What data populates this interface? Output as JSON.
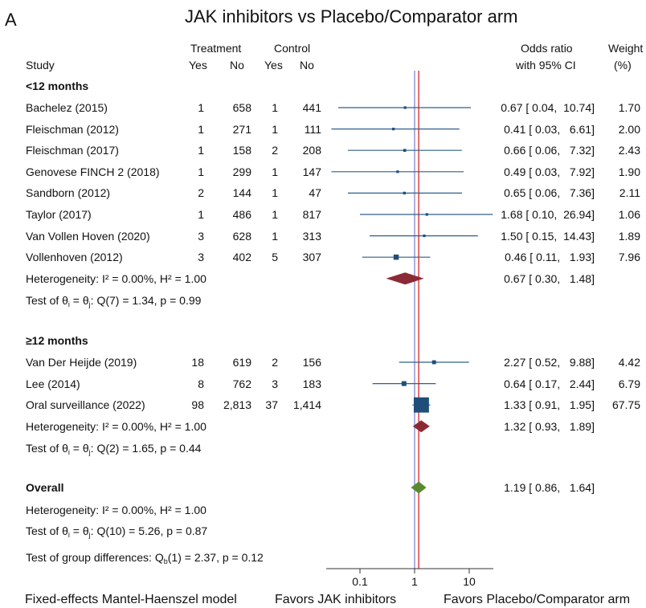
{
  "chart_data": {
    "type": "forest",
    "panel_label": "A",
    "title": "JAK inhibitors vs Placebo/Comparator arm",
    "header": {
      "study": "Study",
      "treatment": "Treatment",
      "control": "Control",
      "yes": "Yes",
      "no": "No",
      "or_line1": "Odds ratio",
      "or_line2": "with 95% CI",
      "weight_line1": "Weight",
      "weight_line2": "(%)"
    },
    "x_axis": {
      "scale": "log",
      "ticks": [
        0.1,
        1,
        10
      ],
      "tick_labels": [
        "0.1",
        "1",
        "10"
      ],
      "reference": 1
    },
    "overall_line": 1.19,
    "groups": [
      {
        "label": "<12 months",
        "studies": [
          {
            "name": "Bachelez (2015)",
            "t_yes": "1",
            "t_no": "658",
            "c_yes": "1",
            "c_no": "441",
            "or": 0.67,
            "lo": 0.04,
            "hi": 10.74,
            "ci_text": "0.67 [ 0.04,  10.74]",
            "weight": "1.70"
          },
          {
            "name": "Fleischman (2012)",
            "t_yes": "1",
            "t_no": "271",
            "c_yes": "1",
            "c_no": "111",
            "or": 0.41,
            "lo": 0.03,
            "hi": 6.61,
            "ci_text": "0.41 [ 0.03,   6.61]",
            "weight": "2.00"
          },
          {
            "name": "Fleischman (2017)",
            "t_yes": "1",
            "t_no": "158",
            "c_yes": "2",
            "c_no": "208",
            "or": 0.66,
            "lo": 0.06,
            "hi": 7.32,
            "ci_text": "0.66 [ 0.06,   7.32]",
            "weight": "2.43"
          },
          {
            "name": "Genovese FINCH 2 (2018)",
            "t_yes": "1",
            "t_no": "299",
            "c_yes": "1",
            "c_no": "147",
            "or": 0.49,
            "lo": 0.03,
            "hi": 7.92,
            "ci_text": "0.49 [ 0.03,   7.92]",
            "weight": "1.90"
          },
          {
            "name": "Sandborn (2012)",
            "t_yes": "2",
            "t_no": "144",
            "c_yes": "1",
            "c_no": "47",
            "or": 0.65,
            "lo": 0.06,
            "hi": 7.36,
            "ci_text": "0.65 [ 0.06,   7.36]",
            "weight": "2.11"
          },
          {
            "name": "Taylor (2017)",
            "t_yes": "1",
            "t_no": "486",
            "c_yes": "1",
            "c_no": "817",
            "or": 1.68,
            "lo": 0.1,
            "hi": 26.94,
            "ci_text": "1.68 [ 0.10,  26.94]",
            "weight": "1.06"
          },
          {
            "name": "Van Vollen Hoven (2020)",
            "t_yes": "3",
            "t_no": "628",
            "c_yes": "1",
            "c_no": "313",
            "or": 1.5,
            "lo": 0.15,
            "hi": 14.43,
            "ci_text": "1.50 [ 0.15,  14.43]",
            "weight": "1.89"
          },
          {
            "name": "Vollenhoven (2012)",
            "t_yes": "3",
            "t_no": "402",
            "c_yes": "5",
            "c_no": "307",
            "or": 0.46,
            "lo": 0.11,
            "hi": 1.93,
            "ci_text": "0.46 [ 0.11,   1.93]",
            "weight": "7.96"
          }
        ],
        "heterogeneity": "Heterogeneity: I² = 0.00%, H² = 1.00",
        "test_theta": {
          "prefix": "Test of θ",
          "i": "i",
          "eq": " = θ",
          "j": "j",
          "suffix": ": Q(7) = 1.34, p = 0.99"
        },
        "pooled": {
          "or": 0.67,
          "lo": 0.3,
          "hi": 1.48,
          "ci_text": "0.67 [ 0.30,   1.48]",
          "color": "#8b2a35"
        }
      },
      {
        "label": "≥12 months",
        "studies": [
          {
            "name": "Van Der Heijde (2019)",
            "t_yes": "18",
            "t_no": "619",
            "c_yes": "2",
            "c_no": "156",
            "or": 2.27,
            "lo": 0.52,
            "hi": 9.88,
            "ci_text": "2.27 [ 0.52,   9.88]",
            "weight": "4.42"
          },
          {
            "name": "Lee (2014)",
            "t_yes": "8",
            "t_no": "762",
            "c_yes": "3",
            "c_no": "183",
            "or": 0.64,
            "lo": 0.17,
            "hi": 2.44,
            "ci_text": "0.64 [ 0.17,   2.44]",
            "weight": "6.79"
          },
          {
            "name": "Oral surveillance (2022)",
            "t_yes": "98",
            "t_no": "2,813",
            "c_yes": "37",
            "c_no": "1,414",
            "or": 1.33,
            "lo": 0.91,
            "hi": 1.95,
            "ci_text": "1.33 [ 0.91,   1.95]",
            "weight": "67.75"
          }
        ],
        "heterogeneity": "Heterogeneity: I² = 0.00%, H² = 1.00",
        "test_theta": {
          "prefix": "Test of θ",
          "i": "i",
          "eq": " = θ",
          "j": "j",
          "suffix": ": Q(2) = 1.65, p = 0.44"
        },
        "pooled": {
          "or": 1.32,
          "lo": 0.93,
          "hi": 1.89,
          "ci_text": "1.32 [ 0.93,   1.89]",
          "color": "#8b2a35"
        }
      }
    ],
    "overall": {
      "label": "Overall",
      "or": 1.19,
      "lo": 0.86,
      "hi": 1.64,
      "ci_text": "1.19 [ 0.86,   1.64]",
      "color": "#5a8a2e",
      "heterogeneity": "Heterogeneity: I² = 0.00%, H² = 1.00",
      "test_theta": {
        "prefix": "Test of θ",
        "i": "i",
        "eq": " = θ",
        "j": "j",
        "suffix": ": Q(10) = 5.26, p = 0.87"
      },
      "group_diff": {
        "prefix": "Test of group differences: Q",
        "sub": "b",
        "suffix": "(1) = 2.37, p = 0.12"
      }
    },
    "footer": {
      "model": "Fixed-effects Mantel-Haenszel model",
      "favors_left": "Favors JAK inhibitors",
      "favors_right": "Favors Placebo/Comparator arm"
    },
    "colors": {
      "marker": "#1f4e79",
      "ci_line": "#2f5f8a",
      "null_line": "#8a8fd0",
      "overall_line": "#d9303a"
    }
  }
}
